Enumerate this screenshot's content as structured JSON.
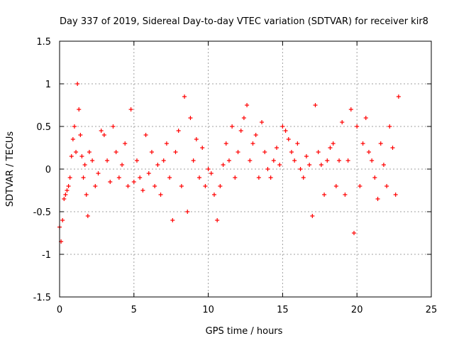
{
  "chart_data": {
    "type": "scatter",
    "title": "Day 337 of 2019, Sidereal Day-to-day VTEC variation (SDTVAR) for receiver kir8",
    "xlabel": "GPS time / hours",
    "ylabel": "SDTVAR / TECUs",
    "xlim": [
      0,
      25
    ],
    "ylim": [
      -1.5,
      1.5
    ],
    "xticks": [
      0,
      5,
      10,
      15,
      20,
      25
    ],
    "xtick_labels": [
      "0",
      "5",
      "10",
      "15",
      "20",
      "25"
    ],
    "yticks": [
      1.5,
      1,
      0.5,
      0,
      -0.5,
      -1,
      -1.5
    ],
    "ytick_labels": [
      "1.5",
      "1",
      "0.5",
      "0",
      "-0.5",
      "-1",
      "-1.5"
    ],
    "grid": true,
    "marker": "+",
    "marker_color": "#ff0000",
    "series": [
      {
        "name": "SDTVAR",
        "x": [
          0.0,
          0.1,
          0.2,
          0.3,
          0.4,
          0.5,
          0.6,
          0.7,
          0.8,
          0.9,
          1.0,
          1.1,
          1.2,
          1.3,
          1.4,
          1.5,
          1.6,
          1.7,
          1.8,
          1.9,
          2.0,
          2.2,
          2.4,
          2.6,
          2.8,
          3.0,
          3.2,
          3.4,
          3.6,
          3.8,
          4.0,
          4.2,
          4.4,
          4.6,
          4.8,
          5.0,
          5.2,
          5.4,
          5.6,
          5.8,
          6.0,
          6.2,
          6.4,
          6.6,
          6.8,
          7.0,
          7.2,
          7.4,
          7.6,
          7.8,
          8.0,
          8.2,
          8.4,
          8.6,
          8.8,
          9.0,
          9.2,
          9.4,
          9.6,
          9.8,
          10.0,
          10.2,
          10.4,
          10.6,
          10.8,
          11.0,
          11.2,
          11.4,
          11.6,
          11.8,
          12.0,
          12.2,
          12.4,
          12.6,
          12.8,
          13.0,
          13.2,
          13.4,
          13.6,
          13.8,
          14.0,
          14.2,
          14.4,
          14.6,
          14.8,
          15.0,
          15.2,
          15.4,
          15.6,
          15.8,
          16.0,
          16.2,
          16.4,
          16.6,
          16.8,
          17.0,
          17.2,
          17.4,
          17.6,
          17.8,
          18.0,
          18.2,
          18.4,
          18.6,
          18.8,
          19.0,
          19.2,
          19.4,
          19.6,
          19.8,
          20.0,
          20.2,
          20.4,
          20.6,
          20.8,
          21.0,
          21.2,
          21.4,
          21.6,
          21.8,
          22.0,
          22.2,
          22.4,
          22.6,
          22.8
        ],
        "y": [
          -0.68,
          -0.85,
          -0.6,
          -0.35,
          -0.3,
          -0.25,
          -0.2,
          -0.1,
          0.15,
          0.35,
          0.5,
          0.2,
          1.0,
          0.7,
          0.4,
          0.15,
          -0.1,
          0.05,
          -0.3,
          -0.55,
          0.2,
          0.1,
          -0.2,
          -0.05,
          0.45,
          0.4,
          0.1,
          -0.15,
          0.5,
          0.2,
          -0.1,
          0.05,
          0.3,
          -0.2,
          0.7,
          -0.15,
          0.1,
          -0.1,
          -0.25,
          0.4,
          -0.05,
          0.2,
          -0.2,
          0.05,
          -0.3,
          0.1,
          0.3,
          -0.1,
          -0.6,
          0.2,
          0.45,
          -0.2,
          0.85,
          -0.5,
          0.6,
          0.1,
          0.35,
          -0.1,
          0.25,
          -0.2,
          0.0,
          -0.05,
          -0.3,
          -0.6,
          -0.2,
          0.05,
          0.3,
          0.1,
          0.5,
          -0.1,
          0.2,
          0.45,
          0.6,
          0.75,
          0.1,
          0.3,
          0.4,
          -0.1,
          0.55,
          0.2,
          0.0,
          -0.1,
          0.1,
          0.25,
          0.05,
          0.5,
          0.45,
          0.35,
          0.2,
          0.1,
          0.3,
          0.0,
          -0.1,
          0.15,
          0.05,
          -0.55,
          0.75,
          0.2,
          0.05,
          -0.3,
          0.1,
          0.25,
          0.3,
          -0.2,
          0.1,
          0.55,
          -0.3,
          0.1,
          0.7,
          -0.75,
          0.5,
          -0.2,
          0.3,
          0.6,
          0.2,
          0.1,
          -0.1,
          -0.35,
          0.3,
          0.05,
          -0.2,
          0.5,
          0.25,
          -0.3,
          0.85
        ]
      }
    ]
  }
}
